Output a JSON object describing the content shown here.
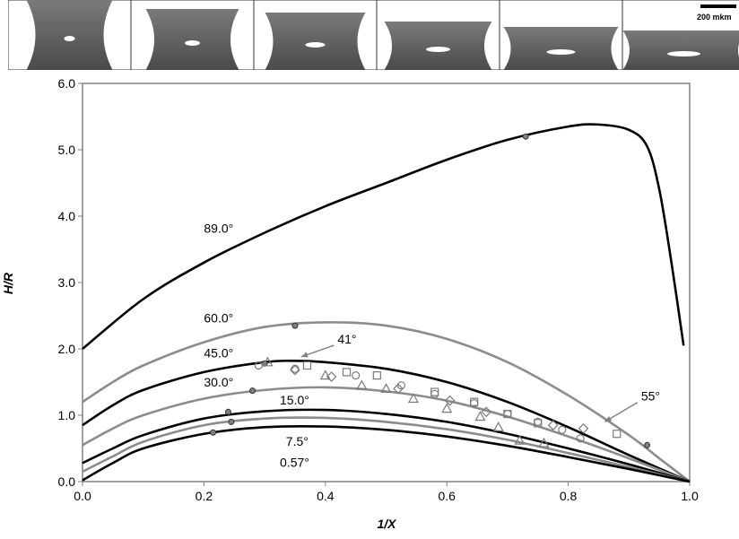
{
  "image_strip": {
    "frame_count": 6,
    "scale_label": "200 mkm"
  },
  "chart_data": {
    "type": "line",
    "xlabel": "1/X",
    "ylabel": "H/R",
    "xlim": [
      0.0,
      1.0
    ],
    "ylim": [
      0.0,
      6.0
    ],
    "x_ticks": [
      "0.0",
      "0.2",
      "0.4",
      "0.6",
      "0.8",
      "1.0"
    ],
    "y_ticks": [
      "0.0",
      "1.0",
      "2.0",
      "3.0",
      "4.0",
      "5.0",
      "6.0"
    ],
    "grid": false,
    "series": [
      {
        "name": "89.0°",
        "color": "#000000",
        "x": [
          0.0,
          0.1,
          0.2,
          0.3,
          0.4,
          0.5,
          0.6,
          0.7,
          0.8,
          0.85,
          0.9,
          0.93,
          0.95,
          0.97,
          0.99
        ],
        "y": [
          2.0,
          2.75,
          3.3,
          3.75,
          4.15,
          4.5,
          4.85,
          5.15,
          5.35,
          5.38,
          5.3,
          5.05,
          4.4,
          3.3,
          2.05
        ],
        "markers": [
          {
            "x": 0.73,
            "y": 5.2
          }
        ]
      },
      {
        "name": "60.0°",
        "color": "#8c8c8c",
        "x": [
          0.0,
          0.05,
          0.1,
          0.2,
          0.3,
          0.4,
          0.5,
          0.6,
          0.7,
          0.8,
          0.9,
          0.95,
          1.0
        ],
        "y": [
          1.2,
          1.5,
          1.75,
          2.1,
          2.33,
          2.4,
          2.35,
          2.15,
          1.8,
          1.3,
          0.7,
          0.35,
          0.0
        ],
        "markers": [
          {
            "x": 0.35,
            "y": 2.35
          },
          {
            "x": 0.93,
            "y": 0.55
          }
        ]
      },
      {
        "name": "45.0°",
        "color": "#000000",
        "x": [
          0.0,
          0.05,
          0.1,
          0.2,
          0.3,
          0.35,
          0.4,
          0.5,
          0.6,
          0.7,
          0.8,
          0.9,
          1.0
        ],
        "y": [
          0.85,
          1.15,
          1.38,
          1.65,
          1.8,
          1.82,
          1.8,
          1.7,
          1.5,
          1.2,
          0.82,
          0.4,
          0.0
        ],
        "markers": [
          {
            "x": 0.3,
            "y": 1.78
          }
        ]
      },
      {
        "name": "30.0°",
        "color": "#8c8c8c",
        "x": [
          0.0,
          0.05,
          0.1,
          0.2,
          0.3,
          0.4,
          0.5,
          0.6,
          0.7,
          0.8,
          0.9,
          1.0
        ],
        "y": [
          0.55,
          0.8,
          1.0,
          1.25,
          1.38,
          1.42,
          1.36,
          1.22,
          0.98,
          0.68,
          0.35,
          0.0
        ],
        "markers": [
          {
            "x": 0.28,
            "y": 1.37
          }
        ]
      },
      {
        "name": "15.0°",
        "color": "#000000",
        "x": [
          0.0,
          0.05,
          0.1,
          0.2,
          0.3,
          0.4,
          0.5,
          0.6,
          0.7,
          0.8,
          0.9,
          1.0
        ],
        "y": [
          0.28,
          0.5,
          0.7,
          0.95,
          1.06,
          1.08,
          1.02,
          0.9,
          0.72,
          0.5,
          0.26,
          0.0
        ],
        "markers": [
          {
            "x": 0.24,
            "y": 1.05
          }
        ]
      },
      {
        "name": "7.5°",
        "color": "#8c8c8c",
        "x": [
          0.0,
          0.05,
          0.1,
          0.2,
          0.3,
          0.4,
          0.5,
          0.6,
          0.7,
          0.8,
          0.9,
          1.0
        ],
        "y": [
          0.15,
          0.38,
          0.6,
          0.85,
          0.95,
          0.96,
          0.9,
          0.79,
          0.63,
          0.43,
          0.22,
          0.0
        ],
        "markers": [
          {
            "x": 0.245,
            "y": 0.9
          }
        ]
      },
      {
        "name": "0.57°",
        "color": "#000000",
        "x": [
          0.0,
          0.05,
          0.1,
          0.2,
          0.3,
          0.4,
          0.5,
          0.6,
          0.7,
          0.8,
          0.9,
          1.0
        ],
        "y": [
          0.02,
          0.28,
          0.5,
          0.72,
          0.82,
          0.83,
          0.78,
          0.68,
          0.54,
          0.37,
          0.19,
          0.0
        ],
        "markers": [
          {
            "x": 0.215,
            "y": 0.74
          }
        ]
      }
    ],
    "curve_labels": [
      {
        "text": "89.0°",
        "x": 0.2,
        "y": 3.75
      },
      {
        "text": "60.0°",
        "x": 0.2,
        "y": 2.4
      },
      {
        "text": "45.0°",
        "x": 0.2,
        "y": 1.87
      },
      {
        "text": "30.0°",
        "x": 0.2,
        "y": 1.43
      },
      {
        "text": "15.0°",
        "x": 0.325,
        "y": 1.16
      },
      {
        "text": "7.5°",
        "x": 0.335,
        "y": 0.54
      },
      {
        "text": "0.57°",
        "x": 0.325,
        "y": 0.22
      }
    ],
    "annotations": [
      {
        "text": "41°",
        "x": 0.42,
        "y": 2.08,
        "arrow_to": [
          0.36,
          1.88
        ]
      },
      {
        "text": "55°",
        "x": 0.92,
        "y": 1.22,
        "arrow_to": [
          0.86,
          0.9
        ]
      }
    ],
    "experimental_points": [
      {
        "marker": "circle",
        "points": [
          [
            0.29,
            1.75
          ],
          [
            0.35,
            1.7
          ],
          [
            0.45,
            1.6
          ],
          [
            0.525,
            1.45
          ],
          [
            0.58,
            1.32
          ],
          [
            0.645,
            1.18
          ],
          [
            0.7,
            1.02
          ],
          [
            0.75,
            0.9
          ],
          [
            0.79,
            0.78
          ],
          [
            0.82,
            0.65
          ]
        ]
      },
      {
        "marker": "triangle",
        "points": [
          [
            0.305,
            1.8
          ],
          [
            0.4,
            1.6
          ],
          [
            0.46,
            1.45
          ],
          [
            0.5,
            1.4
          ],
          [
            0.545,
            1.25
          ],
          [
            0.6,
            1.1
          ],
          [
            0.655,
            0.98
          ],
          [
            0.685,
            0.82
          ],
          [
            0.72,
            0.62
          ],
          [
            0.76,
            0.58
          ]
        ]
      },
      {
        "marker": "square",
        "points": [
          [
            0.37,
            1.75
          ],
          [
            0.435,
            1.65
          ],
          [
            0.485,
            1.6
          ],
          [
            0.58,
            1.35
          ],
          [
            0.645,
            1.2
          ],
          [
            0.7,
            1.02
          ],
          [
            0.75,
            0.88
          ],
          [
            0.88,
            0.72
          ]
        ]
      },
      {
        "marker": "diamond",
        "points": [
          [
            0.35,
            1.68
          ],
          [
            0.41,
            1.58
          ],
          [
            0.52,
            1.4
          ],
          [
            0.605,
            1.22
          ],
          [
            0.665,
            1.05
          ],
          [
            0.775,
            0.85
          ],
          [
            0.825,
            0.8
          ]
        ]
      }
    ]
  }
}
